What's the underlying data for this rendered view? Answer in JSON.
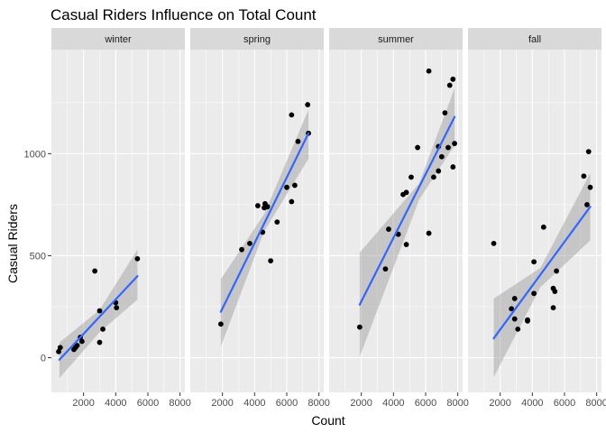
{
  "chart_data": {
    "type": "scatter",
    "title": "Casual Riders Influence on Total Count",
    "xlabel": "Count",
    "ylabel": "Casual Riders",
    "xlim": [
      0,
      8300
    ],
    "ylim": [
      -170,
      1510
    ],
    "x_ticks": [
      2000,
      4000,
      6000,
      8000
    ],
    "y_ticks": [
      0,
      500,
      1000
    ],
    "grid": true,
    "smooth": "linear fit with confidence band",
    "colors": {
      "panel_bg": "#ebebeb",
      "strip_bg": "#d9d9d9",
      "grid": "#ffffff",
      "points": "#000000",
      "fit_line": "#3366ff",
      "band": "#999999"
    },
    "facets": [
      {
        "name": "winter",
        "points": [
          [
            450,
            30
          ],
          [
            550,
            50
          ],
          [
            1400,
            40
          ],
          [
            1500,
            50
          ],
          [
            1600,
            60
          ],
          [
            1800,
            100
          ],
          [
            1900,
            80
          ],
          [
            2700,
            425
          ],
          [
            3000,
            230
          ],
          [
            3000,
            75
          ],
          [
            3200,
            140
          ],
          [
            4000,
            270
          ],
          [
            4050,
            245
          ],
          [
            5350,
            485
          ]
        ],
        "fit": {
          "start": [
            500,
            -10
          ],
          "end": [
            5350,
            400
          ]
        },
        "band": {
          "x": [
            500,
            3000,
            5350
          ],
          "upper": [
            75,
            235,
            530
          ],
          "lower": [
            -100,
            125,
            285
          ]
        }
      },
      {
        "name": "spring",
        "points": [
          [
            1900,
            165
          ],
          [
            3200,
            530
          ],
          [
            3700,
            560
          ],
          [
            4200,
            745
          ],
          [
            4500,
            615
          ],
          [
            4600,
            735
          ],
          [
            4650,
            755
          ],
          [
            4800,
            740
          ],
          [
            5000,
            475
          ],
          [
            5400,
            665
          ],
          [
            6000,
            835
          ],
          [
            6300,
            765
          ],
          [
            6300,
            1190
          ],
          [
            6500,
            845
          ],
          [
            6700,
            1060
          ],
          [
            7300,
            1240
          ],
          [
            7350,
            1100
          ]
        ],
        "fit": {
          "start": [
            1900,
            225
          ],
          "end": [
            7350,
            1100
          ]
        },
        "band": {
          "x": [
            1900,
            4600,
            7350
          ],
          "upper": [
            385,
            705,
            1215
          ],
          "lower": [
            55,
            620,
            975
          ]
        }
      },
      {
        "name": "summer",
        "points": [
          [
            1900,
            150
          ],
          [
            3500,
            435
          ],
          [
            3700,
            630
          ],
          [
            4300,
            605
          ],
          [
            4600,
            800
          ],
          [
            4800,
            810
          ],
          [
            4800,
            555
          ],
          [
            5100,
            885
          ],
          [
            5500,
            1030
          ],
          [
            6200,
            610
          ],
          [
            6200,
            1405
          ],
          [
            6500,
            885
          ],
          [
            6800,
            915
          ],
          [
            6800,
            1035
          ],
          [
            7000,
            985
          ],
          [
            7200,
            1200
          ],
          [
            7400,
            1030
          ],
          [
            7500,
            1335
          ],
          [
            7700,
            1365
          ],
          [
            7700,
            935
          ],
          [
            7800,
            1050
          ]
        ],
        "fit": {
          "start": [
            1900,
            260
          ],
          "end": [
            7800,
            1180
          ]
        },
        "band": {
          "x": [
            1900,
            5600,
            7800
          ],
          "upper": [
            515,
            855,
            1320
          ],
          "lower": [
            5,
            775,
            1040
          ]
        }
      },
      {
        "name": "fall",
        "points": [
          [
            1600,
            560
          ],
          [
            2700,
            240
          ],
          [
            2900,
            290
          ],
          [
            2900,
            190
          ],
          [
            3100,
            140
          ],
          [
            3700,
            180
          ],
          [
            3700,
            185
          ],
          [
            4100,
            315
          ],
          [
            4100,
            470
          ],
          [
            4700,
            640
          ],
          [
            5300,
            245
          ],
          [
            5300,
            340
          ],
          [
            5400,
            325
          ],
          [
            5500,
            425
          ],
          [
            7200,
            890
          ],
          [
            7400,
            750
          ],
          [
            7500,
            1010
          ],
          [
            7600,
            835
          ]
        ],
        "fit": {
          "start": [
            1600,
            95
          ],
          "end": [
            7600,
            740
          ]
        },
        "band": {
          "x": [
            1600,
            4500,
            7600
          ],
          "upper": [
            290,
            440,
            905
          ],
          "lower": [
            -95,
            345,
            575
          ]
        }
      }
    ]
  }
}
